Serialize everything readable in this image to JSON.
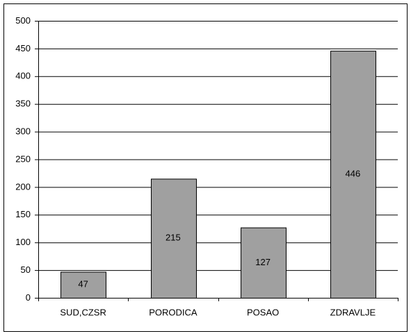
{
  "chart_data": {
    "type": "bar",
    "categories": [
      "SUD,CZSR",
      "PORODICA",
      "POSAO",
      "ZDRAVLJE"
    ],
    "values": [
      47,
      215,
      127,
      446
    ],
    "color": "#a0a0a0",
    "ylim": [
      0,
      500
    ],
    "yticks": [
      0,
      50,
      100,
      150,
      200,
      250,
      300,
      350,
      400,
      450,
      500
    ],
    "grid": true,
    "data_labels": true
  }
}
